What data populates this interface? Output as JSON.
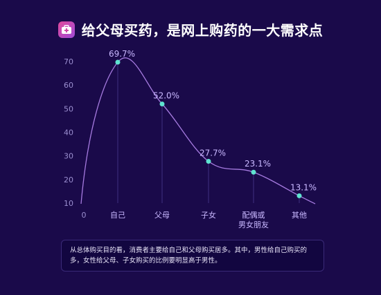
{
  "header": {
    "title": "给父母买药，是网上购药的一大需求点",
    "icon": "medicine-kit-icon"
  },
  "colors": {
    "background": "#1a0a4a",
    "curve": "#a67be0",
    "point": "#5fe3d0",
    "axis_text": "#9b8fd0",
    "label_text": "#c9b8ff"
  },
  "chart_data": {
    "type": "line",
    "categories": [
      "自己",
      "父母",
      "子女",
      "配偶或\n男女朋友",
      "其他"
    ],
    "values": [
      69.7,
      52.0,
      27.7,
      23.1,
      13.1
    ],
    "value_labels": [
      "69.7%",
      "52.0%",
      "27.7%",
      "23.1%",
      "13.1%"
    ],
    "x_origin_label": "0",
    "yticks": [
      10,
      20,
      30,
      40,
      50,
      60,
      70
    ],
    "ylim": [
      10,
      70
    ],
    "title": "给父母买药，是网上购药的一大需求点",
    "xlabel": "",
    "ylabel": "",
    "grid": false
  },
  "note": {
    "text": "从总体购买目的看，消费者主要给自己和父母购买居多。其中，男性给自己购买的多，女性给父母、子女购买的比例要明显高于男性。"
  }
}
